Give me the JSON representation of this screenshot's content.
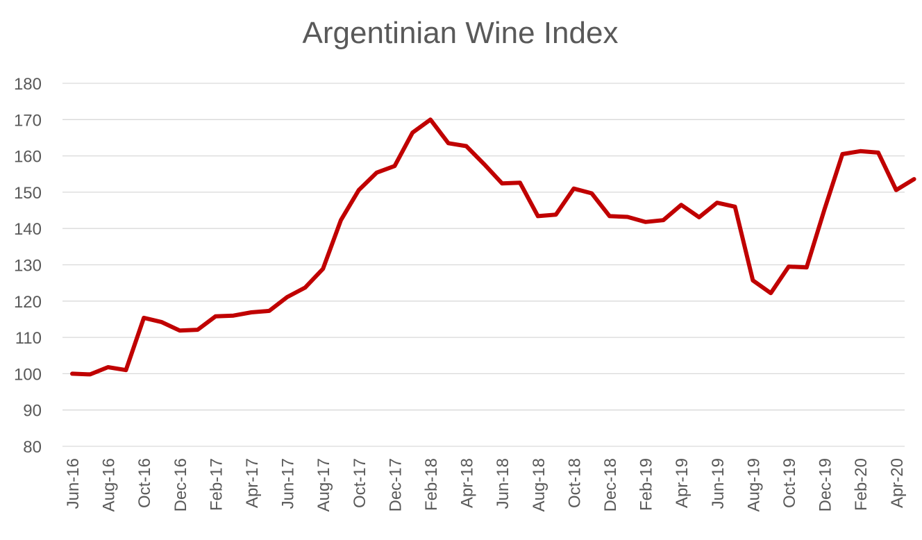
{
  "chart_data": {
    "type": "line",
    "title": "Argentinian Wine Index",
    "xlabel": "",
    "ylabel": "",
    "ylim": [
      80,
      180
    ],
    "yticks": [
      80,
      90,
      100,
      110,
      120,
      130,
      140,
      150,
      160,
      170,
      180
    ],
    "grid": true,
    "legend": "none",
    "x": [
      "Jun-16",
      "Jul-16",
      "Aug-16",
      "Sep-16",
      "Oct-16",
      "Nov-16",
      "Dec-16",
      "Jan-17",
      "Feb-17",
      "Mar-17",
      "Apr-17",
      "May-17",
      "Jun-17",
      "Jul-17",
      "Aug-17",
      "Sep-17",
      "Oct-17",
      "Nov-17",
      "Dec-17",
      "Jan-18",
      "Feb-18",
      "Mar-18",
      "Apr-18",
      "May-18",
      "Jun-18",
      "Jul-18",
      "Aug-18",
      "Sep-18",
      "Oct-18",
      "Nov-18",
      "Dec-18",
      "Jan-19",
      "Feb-19",
      "Mar-19",
      "Apr-19",
      "May-19",
      "Jun-19",
      "Jul-19",
      "Aug-19",
      "Sep-19",
      "Oct-19",
      "Nov-19",
      "Dec-19",
      "Jan-20",
      "Feb-20",
      "Mar-20",
      "Apr-20",
      "May-20"
    ],
    "xtick_labels": [
      "Jun-16",
      "Aug-16",
      "Oct-16",
      "Dec-16",
      "Feb-17",
      "Apr-17",
      "Jun-17",
      "Aug-17",
      "Oct-17",
      "Dec-17",
      "Feb-18",
      "Apr-18",
      "Jun-18",
      "Aug-18",
      "Oct-18",
      "Dec-18",
      "Feb-19",
      "Apr-19",
      "Jun-19",
      "Aug-19",
      "Oct-19",
      "Dec-19",
      "Feb-20",
      "Apr-20"
    ],
    "series": [
      {
        "color": "#c00000",
        "values": [
          100.0,
          99.8,
          101.8,
          101.0,
          115.4,
          114.2,
          111.9,
          112.1,
          115.8,
          116.0,
          116.9,
          117.3,
          121.1,
          123.7,
          128.9,
          142.3,
          150.6,
          155.4,
          157.2,
          166.4,
          170.0,
          163.5,
          162.7,
          157.7,
          152.4,
          152.6,
          143.4,
          143.8,
          151.0,
          149.7,
          143.4,
          143.2,
          141.8,
          142.3,
          146.5,
          143.1,
          147.1,
          146.0,
          125.7,
          122.2,
          129.5,
          129.3,
          145.3,
          160.5,
          161.3,
          160.9,
          150.6,
          153.6
        ]
      }
    ]
  }
}
